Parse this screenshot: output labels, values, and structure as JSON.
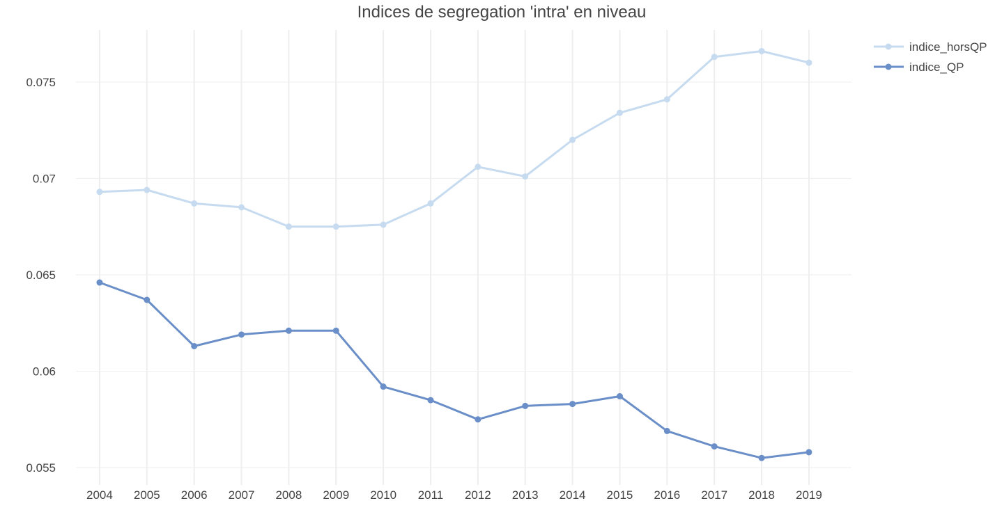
{
  "chart_data": {
    "type": "line",
    "title": "Indices de segregation 'intra' en niveau",
    "xlabel": "",
    "ylabel": "",
    "x": [
      2004,
      2005,
      2006,
      2007,
      2008,
      2009,
      2010,
      2011,
      2012,
      2013,
      2014,
      2015,
      2016,
      2017,
      2018,
      2019
    ],
    "x_tick_labels": [
      "2004",
      "2005",
      "2006",
      "2007",
      "2008",
      "2009",
      "2010",
      "2011",
      "2012",
      "2013",
      "2014",
      "2015",
      "2016",
      "2017",
      "2018",
      "2019"
    ],
    "y_ticks": [
      0.055,
      0.06,
      0.065,
      0.07,
      0.075
    ],
    "y_tick_labels": [
      "0.055",
      "0.06",
      "0.065",
      "0.07",
      "0.075"
    ],
    "xlim": [
      2003.5,
      2019.9
    ],
    "ylim": [
      0.0541,
      0.0777
    ],
    "grid": true,
    "legend_position": "top-right",
    "series": [
      {
        "name": "indice_horsQP",
        "color": "#c6dbef",
        "values": [
          0.0693,
          0.0694,
          0.0687,
          0.0685,
          0.0675,
          0.0675,
          0.0676,
          0.0687,
          0.0706,
          0.0701,
          0.072,
          0.0734,
          0.0741,
          0.0763,
          0.0766,
          0.076
        ]
      },
      {
        "name": "indice_QP",
        "color": "#6a8ec7",
        "values": [
          0.0646,
          0.0637,
          0.0613,
          0.0619,
          0.0621,
          0.0621,
          0.0592,
          0.0585,
          0.0575,
          0.0582,
          0.0583,
          0.0587,
          0.0569,
          0.0561,
          0.0555,
          0.0558
        ]
      }
    ]
  }
}
